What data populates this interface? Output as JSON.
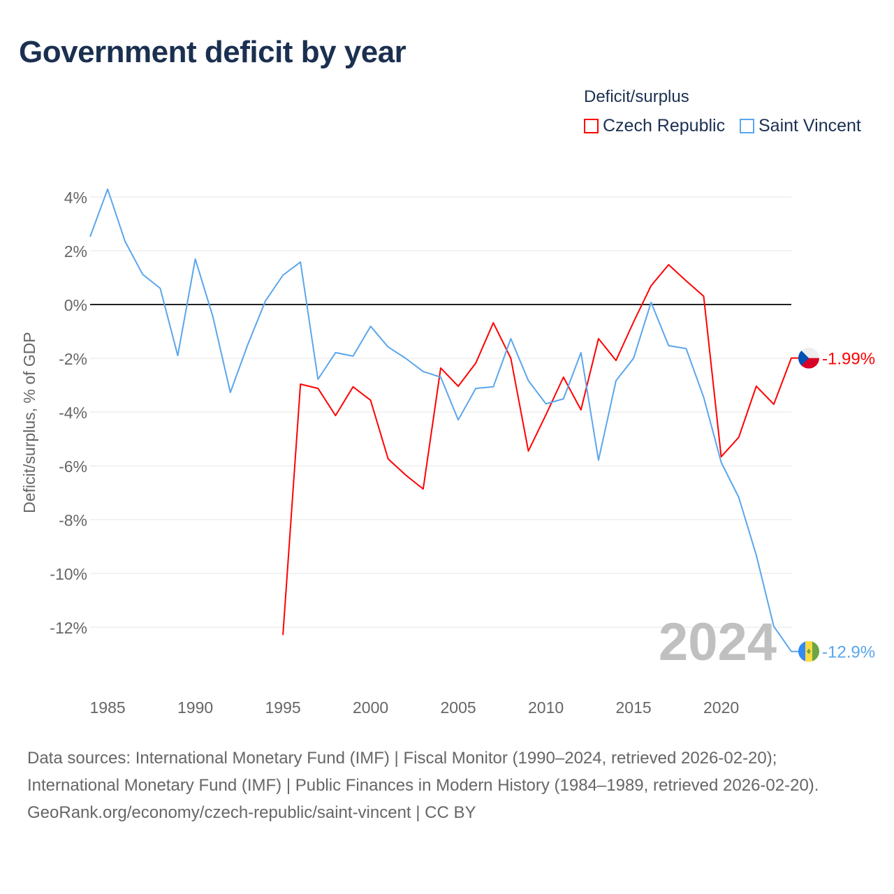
{
  "title": "Government deficit by year",
  "legend": {
    "title": "Deficit/surplus",
    "items": [
      "Czech Republic",
      "Saint Vincent"
    ]
  },
  "colors": {
    "czech": "#ff0000",
    "svg": "#5aa6ec",
    "zero": "#222222",
    "grid": "#e6e6e6",
    "year": "#c0c0c0"
  },
  "year_label": "2024",
  "chart_data": {
    "type": "line",
    "title": "Government deficit by year",
    "xlabel": "",
    "ylabel": "Deficit/surplus, % of GDP",
    "xlim": [
      1984,
      2024
    ],
    "ylim": [
      -13,
      4.5
    ],
    "x_ticks": [
      1985,
      1990,
      1995,
      2000,
      2005,
      2010,
      2015,
      2020
    ],
    "x_tick_labels": [
      "1985",
      "1990",
      "1995",
      "2000",
      "2005",
      "2010",
      "2015",
      "2020"
    ],
    "y_ticks": [
      4,
      2,
      0,
      -2,
      -4,
      -6,
      -8,
      -10,
      -12
    ],
    "y_tick_labels": [
      "4%",
      "2%",
      "0%",
      "-2%",
      "-4%",
      "-6%",
      "-8%",
      "-10%",
      "-12%"
    ],
    "series": [
      {
        "name": "Czech Republic",
        "end_label": "-1.99%",
        "x": [
          1995,
          1996,
          1997,
          1998,
          1999,
          2000,
          2001,
          2002,
          2003,
          2004,
          2005,
          2006,
          2007,
          2008,
          2009,
          2010,
          2011,
          2012,
          2013,
          2014,
          2015,
          2016,
          2017,
          2018,
          2019,
          2020,
          2021,
          2022,
          2023,
          2024
        ],
        "values": [
          -12.29,
          -2.96,
          -3.12,
          -4.13,
          -3.06,
          -3.56,
          -5.74,
          -6.34,
          -6.86,
          -2.36,
          -3.04,
          -2.18,
          -0.68,
          -2.0,
          -5.45,
          -4.1,
          -2.7,
          -3.92,
          -1.27,
          -2.08,
          -0.65,
          0.7,
          1.48,
          0.88,
          0.31,
          -5.66,
          -4.94,
          -3.04,
          -3.71,
          -1.99
        ]
      },
      {
        "name": "Saint Vincent",
        "end_label": "-12.9%",
        "x": [
          1984,
          1985,
          1986,
          1987,
          1988,
          1989,
          1990,
          1991,
          1992,
          1993,
          1994,
          1995,
          1996,
          1997,
          1998,
          1999,
          2000,
          2001,
          2002,
          2003,
          2004,
          2005,
          2006,
          2007,
          2008,
          2009,
          2010,
          2011,
          2012,
          2013,
          2014,
          2015,
          2016,
          2017,
          2018,
          2019,
          2020,
          2021,
          2022,
          2023,
          2024
        ],
        "values": [
          2.52,
          4.29,
          2.34,
          1.12,
          0.6,
          -1.9,
          1.69,
          -0.44,
          -3.27,
          -1.48,
          0.13,
          1.09,
          1.58,
          -2.78,
          -1.79,
          -1.92,
          -0.81,
          -1.58,
          -2.0,
          -2.49,
          -2.7,
          -4.29,
          -3.12,
          -3.06,
          -1.27,
          -2.83,
          -3.69,
          -3.51,
          -1.79,
          -5.79,
          -2.83,
          -2.0,
          0.08,
          -1.53,
          -1.64,
          -3.45,
          -5.87,
          -7.17,
          -9.32,
          -11.97,
          -12.9
        ]
      }
    ]
  },
  "sources": {
    "line1": "Data sources: International Monetary Fund (IMF) | Fiscal Monitor (1990–2024, retrieved 2026-02-20); International Monetary Fund (IMF) | Public Finances in Modern History (1984–1989, retrieved 2026-02-20).",
    "line2": "GeoRank.org/economy/czech-republic/saint-vincent | CC BY"
  }
}
